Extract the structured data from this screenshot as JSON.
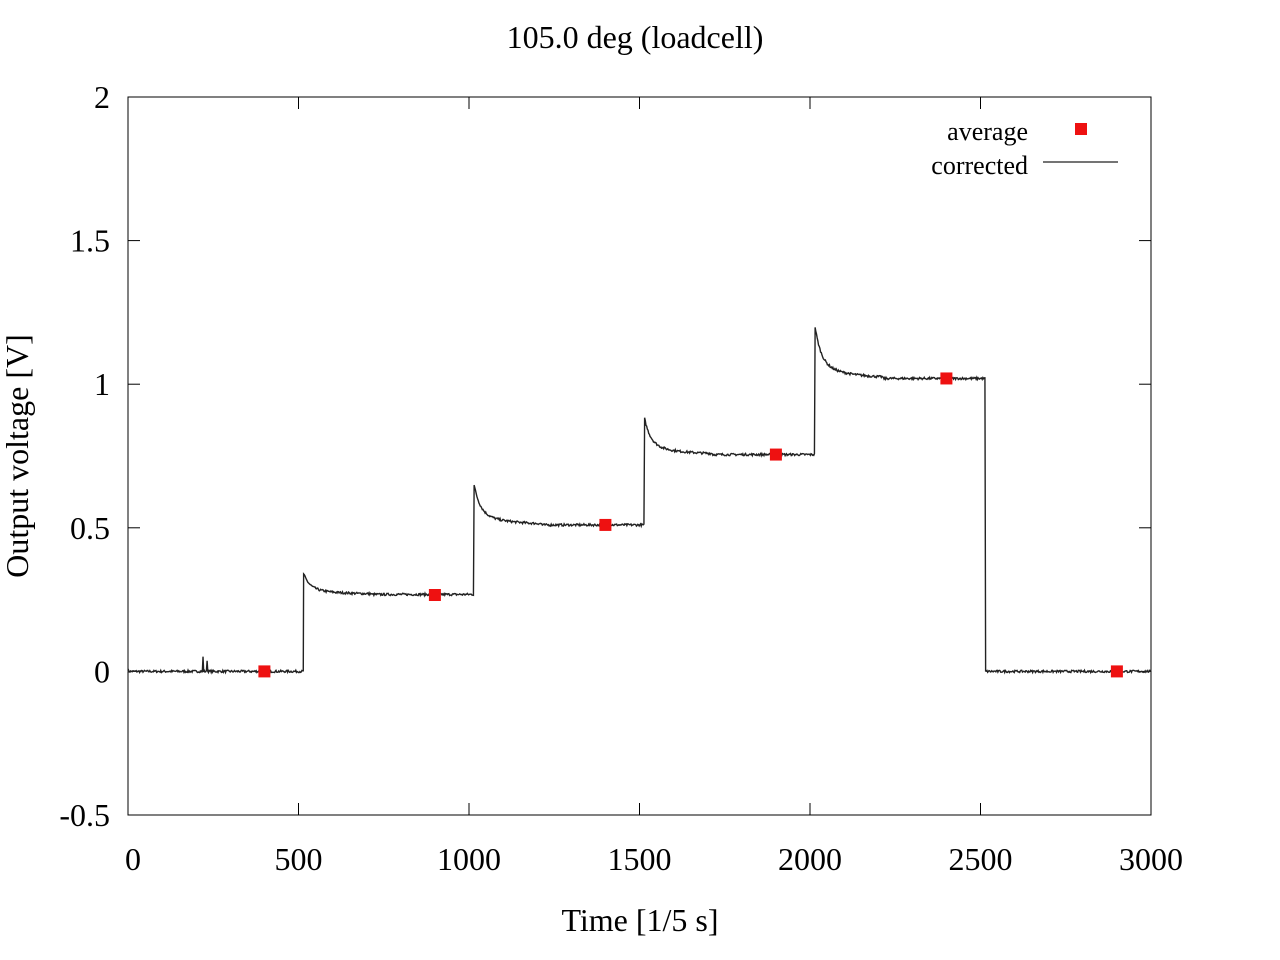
{
  "chart_data": {
    "type": "line",
    "title": "105.0 deg (loadcell)",
    "xlabel": "Time [1/5 s]",
    "ylabel": "Output voltage [V]",
    "xlim": [
      0,
      3000
    ],
    "ylim": [
      -0.5,
      2
    ],
    "xticks": [
      0,
      500,
      1000,
      1500,
      2000,
      2500,
      3000
    ],
    "xtick_labels": [
      "0",
      "500",
      "1000",
      "1500",
      "2000",
      "2500",
      "3000"
    ],
    "yticks": [
      -0.5,
      0,
      0.5,
      1,
      1.5,
      2
    ],
    "ytick_labels": [
      "-0.5",
      "0",
      "0.5",
      "1",
      "1.5",
      "2"
    ],
    "grid": false,
    "legend_position": "top-right",
    "series": [
      {
        "name": "average",
        "style": "points",
        "marker": "square",
        "color": "#ee1111",
        "x": [
          400,
          900,
          1400,
          1900,
          2400,
          2900
        ],
        "y": [
          0.0,
          0.266,
          0.51,
          0.755,
          1.02,
          0.0
        ]
      },
      {
        "name": "corrected",
        "style": "line",
        "color": "#222222",
        "steps": [
          {
            "start": 0,
            "end": 515,
            "level": 0.0,
            "peak": 0.0
          },
          {
            "start": 515,
            "end": 1015,
            "level": 0.268,
            "peak": 0.34
          },
          {
            "start": 1015,
            "end": 1515,
            "level": 0.51,
            "peak": 0.65
          },
          {
            "start": 1515,
            "end": 2015,
            "level": 0.755,
            "peak": 0.88
          },
          {
            "start": 2015,
            "end": 2515,
            "level": 1.02,
            "peak": 1.2
          },
          {
            "start": 2515,
            "end": 3000,
            "level": 0.0,
            "peak": 0.0
          }
        ],
        "spikes": [
          {
            "x": 220,
            "y": 0.05
          },
          {
            "x": 232,
            "y": 0.04
          }
        ]
      }
    ]
  }
}
